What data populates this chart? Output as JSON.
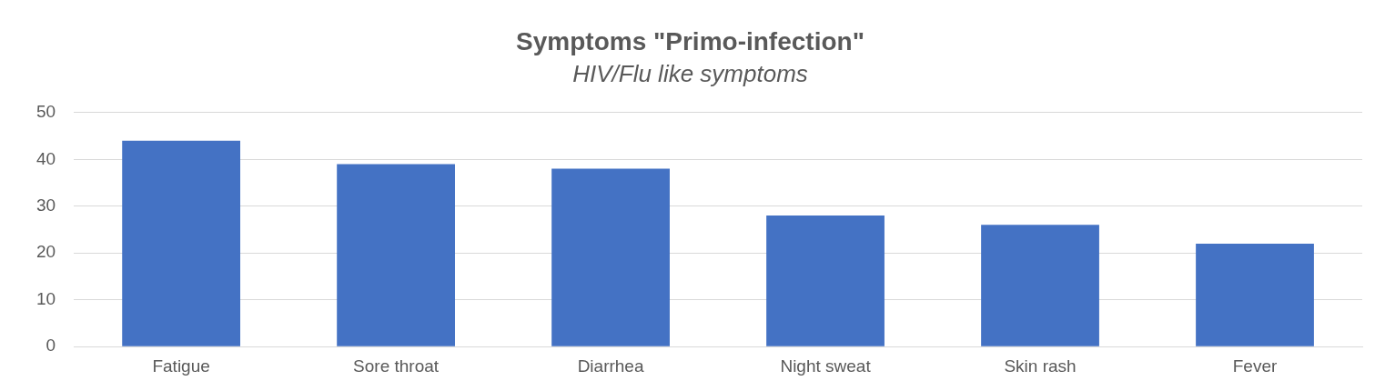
{
  "chart_data": {
    "type": "bar",
    "title": "Symptoms \"Primo-infection\"",
    "subtitle": "HIV/Flu like symptoms",
    "categories": [
      "Fatigue",
      "Sore throat",
      "Diarrhea",
      "Night sweat",
      "Skin rash",
      "Fever"
    ],
    "values": [
      44,
      39,
      38,
      28,
      26,
      22
    ],
    "color": "#4472c4",
    "ylim": [
      0,
      50
    ],
    "yticks": [
      0,
      10,
      20,
      30,
      40,
      50
    ],
    "grid": "y",
    "legend": false
  }
}
